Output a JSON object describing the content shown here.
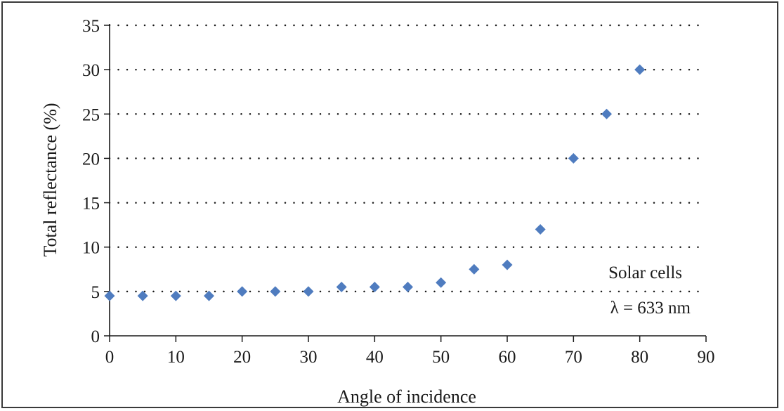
{
  "chart_data": {
    "type": "scatter",
    "title": "",
    "xlabel": "Angle of incidence",
    "ylabel": "Total reflectance (%)",
    "xlim": [
      0,
      90
    ],
    "ylim": [
      0,
      35
    ],
    "x_ticks": [
      "0",
      "10",
      "20",
      "30",
      "40",
      "50",
      "60",
      "70",
      "80",
      "90"
    ],
    "y_ticks": [
      "0",
      "5",
      "10",
      "15",
      "20",
      "25",
      "30",
      "35"
    ],
    "grid": "horizontal dotted",
    "marker_color": "#4f7cbf",
    "series": [
      {
        "points": [
          [
            0,
            4.5
          ],
          [
            5,
            4.5
          ],
          [
            10,
            4.5
          ],
          [
            15,
            4.5
          ],
          [
            20,
            5
          ],
          [
            25,
            5
          ],
          [
            30,
            5
          ],
          [
            35,
            5.5
          ],
          [
            40,
            5.5
          ],
          [
            45,
            5.5
          ],
          [
            50,
            6
          ],
          [
            55,
            7.5
          ],
          [
            60,
            8
          ],
          [
            65,
            12
          ],
          [
            70,
            20
          ],
          [
            75,
            25
          ],
          [
            80,
            30
          ]
        ]
      }
    ],
    "annotations": [
      "Solar cells",
      "λ = 633 nm"
    ]
  }
}
